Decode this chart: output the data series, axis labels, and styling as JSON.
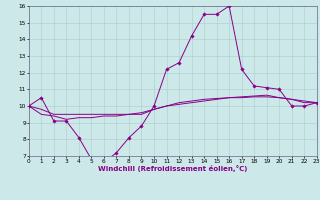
{
  "xlabel": "Windchill (Refroidissement éolien,°C)",
  "background_color": "#cce8e8",
  "line_color": "#880088",
  "grid_color": "#aacccc",
  "xlim": [
    0,
    23
  ],
  "ylim": [
    7,
    16
  ],
  "yticks": [
    7,
    8,
    9,
    10,
    11,
    12,
    13,
    14,
    15,
    16
  ],
  "xticks": [
    0,
    1,
    2,
    3,
    4,
    5,
    6,
    7,
    8,
    9,
    10,
    11,
    12,
    13,
    14,
    15,
    16,
    17,
    18,
    19,
    20,
    21,
    22,
    23
  ],
  "curve1_x": [
    0,
    1,
    2,
    3,
    4,
    5,
    6,
    7,
    8,
    9,
    10,
    11,
    12,
    13,
    14,
    15,
    16,
    17,
    18,
    19,
    20,
    21,
    22,
    23
  ],
  "curve1_y": [
    10.0,
    10.5,
    9.1,
    9.1,
    8.1,
    6.8,
    6.6,
    7.2,
    8.1,
    8.8,
    10.0,
    12.2,
    12.6,
    14.2,
    15.5,
    15.5,
    16.0,
    12.2,
    11.2,
    11.1,
    11.0,
    10.0,
    10.0,
    10.2
  ],
  "curve2_x": [
    0,
    1,
    2,
    3,
    4,
    5,
    6,
    7,
    8,
    9,
    10,
    11,
    12,
    13,
    14,
    15,
    16,
    17,
    18,
    19,
    20,
    21,
    22,
    23
  ],
  "curve2_y": [
    10.0,
    9.5,
    9.4,
    9.2,
    9.3,
    9.3,
    9.4,
    9.4,
    9.5,
    9.6,
    9.8,
    10.0,
    10.1,
    10.2,
    10.3,
    10.4,
    10.5,
    10.55,
    10.6,
    10.65,
    10.5,
    10.4,
    10.2,
    10.2
  ],
  "curve3_x": [
    0,
    1,
    2,
    3,
    4,
    5,
    6,
    7,
    8,
    9,
    10,
    11,
    12,
    13,
    14,
    15,
    16,
    17,
    18,
    19,
    20,
    21,
    22,
    23
  ],
  "curve3_y": [
    10.0,
    9.8,
    9.5,
    9.5,
    9.5,
    9.5,
    9.5,
    9.5,
    9.5,
    9.5,
    9.8,
    10.0,
    10.2,
    10.3,
    10.4,
    10.45,
    10.5,
    10.5,
    10.55,
    10.55,
    10.5,
    10.4,
    10.3,
    10.2
  ]
}
